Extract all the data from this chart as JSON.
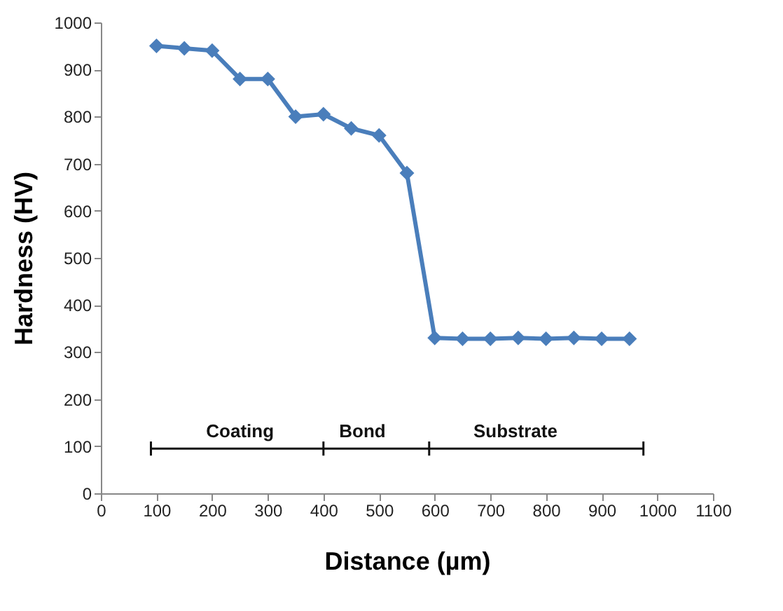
{
  "chart_data": {
    "type": "line",
    "xlabel": "Distance (µm)",
    "ylabel": "Hardness (HV)",
    "x": [
      100,
      150,
      200,
      250,
      300,
      350,
      400,
      450,
      500,
      550,
      600,
      650,
      700,
      750,
      800,
      850,
      900,
      950
    ],
    "series": [
      {
        "color": "#4a7ebb",
        "values": [
          950,
          945,
          940,
          880,
          880,
          800,
          805,
          775,
          760,
          680,
          330,
          328,
          328,
          330,
          328,
          330,
          328,
          328
        ]
      },
      {
        "color": "#111111",
        "x": [
          90,
          400,
          590,
          975
        ],
        "values": [
          95,
          95,
          95,
          95
        ],
        "errors": [
          15,
          15,
          15,
          15
        ],
        "marker": "none"
      }
    ],
    "annotations": [
      {
        "text": "Coating",
        "x": 250,
        "y": 110
      },
      {
        "text": "Bond",
        "x": 470,
        "y": 110
      },
      {
        "text": "Substrate",
        "x": 745,
        "y": 110
      }
    ],
    "xlim": [
      0,
      1100
    ],
    "xticks": [
      0,
      100,
      200,
      300,
      400,
      500,
      600,
      700,
      800,
      900,
      1000,
      1100
    ],
    "ylim": [
      0,
      1000
    ],
    "yticks": [
      0,
      100,
      200,
      300,
      400,
      500,
      600,
      700,
      800,
      900,
      1000
    ],
    "marker": "diamond",
    "line_style": "solid",
    "grid": false
  }
}
